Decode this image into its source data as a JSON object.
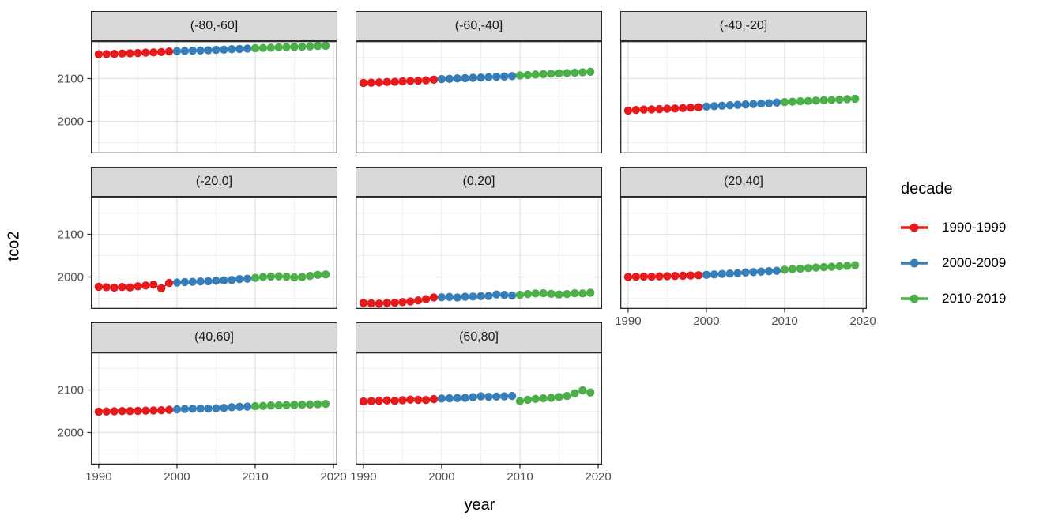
{
  "figure": {
    "kind": "faceted scatter plot",
    "background": "#FFFFFF"
  },
  "chart_data": {
    "type": "scatter",
    "xlabel": "year",
    "ylabel": "tco2",
    "legend_title": "decade",
    "legend_position": "right",
    "grid": true,
    "x_domain": [
      1989,
      2020.5
    ],
    "y_domain": [
      1925,
      2188
    ],
    "x_ticks": [
      1990,
      2000,
      2010,
      2020
    ],
    "y_ticks": [
      2100,
      2000
    ],
    "x_minor_ticks": [
      1995,
      2005,
      2015
    ],
    "y_minor_ticks": [
      2150,
      2050,
      1950
    ],
    "x": [
      1990,
      1991,
      1992,
      1993,
      1994,
      1995,
      1996,
      1997,
      1998,
      1999,
      2000,
      2001,
      2002,
      2003,
      2004,
      2005,
      2006,
      2007,
      2008,
      2009,
      2010,
      2011,
      2012,
      2013,
      2014,
      2015,
      2016,
      2017,
      2018,
      2019
    ],
    "decades": [
      {
        "label": "1990-1999",
        "color": "#E41A1C",
        "start": 1990,
        "end": 1999
      },
      {
        "label": "2000-2009",
        "color": "#377EB8",
        "start": 2000,
        "end": 2009
      },
      {
        "label": "2010-2019",
        "color": "#4DAF4A",
        "start": 2010,
        "end": 2019
      }
    ],
    "facets": [
      {
        "label": "(-80,-60]",
        "row": 0,
        "col": 0,
        "axis_x": false,
        "axis_y": true,
        "values": [
          2157,
          2157.5,
          2158,
          2159,
          2159.5,
          2160,
          2161,
          2161.5,
          2162.5,
          2163.5,
          2164.5,
          2165,
          2165.5,
          2166,
          2166.5,
          2167.5,
          2168,
          2169,
          2169.5,
          2170.5,
          2171.5,
          2172,
          2172.5,
          2173.5,
          2174,
          2174.5,
          2175,
          2175.5,
          2176.5,
          2177
        ]
      },
      {
        "label": "(-60,-40]",
        "row": 0,
        "col": 1,
        "axis_x": false,
        "axis_y": false,
        "values": [
          2090,
          2090.5,
          2091,
          2092,
          2092.5,
          2093.5,
          2094.5,
          2095,
          2096,
          2097.5,
          2099,
          2099.5,
          2100.5,
          2101,
          2102,
          2102.5,
          2103.5,
          2104.5,
          2105,
          2106,
          2107.5,
          2108.5,
          2109.5,
          2110.5,
          2111.5,
          2112.5,
          2113,
          2114,
          2115,
          2116
        ]
      },
      {
        "label": "(-40,-20]",
        "row": 0,
        "col": 2,
        "axis_x": false,
        "axis_y": false,
        "values": [
          2025,
          2026.5,
          2027.5,
          2028,
          2028.5,
          2029.5,
          2030,
          2031,
          2032,
          2033,
          2034.5,
          2035.5,
          2036.5,
          2037.5,
          2038.5,
          2039.5,
          2040.5,
          2041.5,
          2042.5,
          2044,
          2045,
          2046,
          2047,
          2047.5,
          2048.5,
          2049.5,
          2050,
          2051,
          2052,
          2053
        ]
      },
      {
        "label": "(-20,0]",
        "row": 1,
        "col": 0,
        "axis_x": false,
        "axis_y": true,
        "values": [
          1977,
          1976,
          1975,
          1976.5,
          1975.5,
          1978,
          1980,
          1982,
          1973.5,
          1986,
          1987,
          1988,
          1988.5,
          1989.5,
          1990,
          1991,
          1992,
          1993,
          1995,
          1996,
          1998,
          2000,
          2001,
          2001.5,
          2000.5,
          1999,
          2000,
          2002.5,
          2005,
          2006
        ]
      },
      {
        "label": "(0,20]",
        "row": 1,
        "col": 1,
        "axis_x": false,
        "axis_y": false,
        "values": [
          1939,
          1938,
          1937.5,
          1939,
          1939.5,
          1941,
          1942.5,
          1945,
          1948,
          1952,
          1952.5,
          1953,
          1952,
          1953.5,
          1954,
          1955,
          1955.5,
          1959,
          1958,
          1956.5,
          1958,
          1960,
          1961.5,
          1962,
          1960.5,
          1959,
          1960,
          1962,
          1961.5,
          1963
        ]
      },
      {
        "label": "(20,40]",
        "row": 1,
        "col": 2,
        "axis_x": true,
        "axis_y": false,
        "values": [
          2000,
          2000.5,
          2001,
          2000.5,
          2001.5,
          2002,
          2002.5,
          2003,
          2003.5,
          2004,
          2005,
          2006,
          2007,
          2008,
          2009,
          2010.5,
          2011.5,
          2012.5,
          2013.5,
          2014.5,
          2017,
          2018.5,
          2019.5,
          2021,
          2022,
          2023,
          2024,
          2025,
          2026,
          2027.5
        ]
      },
      {
        "label": "(40,60]",
        "row": 2,
        "col": 0,
        "axis_x": true,
        "axis_y": true,
        "values": [
          2049,
          2049.5,
          2050,
          2050.5,
          2050.5,
          2051,
          2051.5,
          2052,
          2052.5,
          2053.5,
          2054.5,
          2055.5,
          2056,
          2056.5,
          2056.5,
          2057,
          2058,
          2059.5,
          2060.5,
          2061,
          2062,
          2062.5,
          2063.5,
          2064,
          2064.5,
          2065,
          2065.5,
          2066,
          2066.5,
          2067.5
        ]
      },
      {
        "label": "(60,80]",
        "row": 2,
        "col": 1,
        "axis_x": true,
        "axis_y": false,
        "values": [
          2073,
          2074,
          2074.5,
          2075.5,
          2074.5,
          2076,
          2077.5,
          2077,
          2076.5,
          2078.5,
          2080,
          2080.5,
          2081,
          2081.5,
          2083,
          2085,
          2084,
          2084.5,
          2085,
          2086,
          2074,
          2077,
          2079,
          2080.5,
          2081.5,
          2083.5,
          2086,
          2092,
          2099,
          2094
        ]
      }
    ],
    "style": {
      "strip_fill": "#D9D9D9",
      "strip_text": "#1A1A1A",
      "panel_border": "#2B2B2B",
      "grid_major": "#E3E3E3",
      "grid_minor": "#F1F1F1",
      "tick_text": "#4D4D4D",
      "point_radius": 5.2
    }
  }
}
